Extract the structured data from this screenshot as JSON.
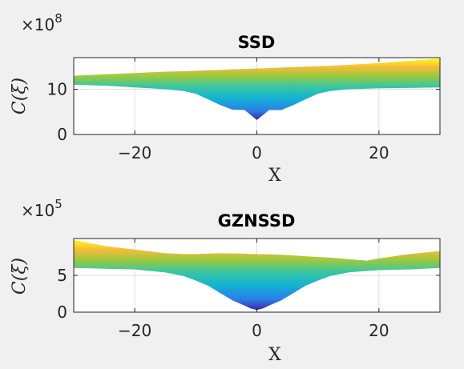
{
  "chart_data": [
    {
      "type": "area",
      "title": "SSD",
      "xlabel": "X",
      "ylabel": "C(ξ)",
      "exponent_base": "×10",
      "exponent_power": "8",
      "xlim": [
        -30,
        30
      ],
      "ylim": [
        0,
        17
      ],
      "xticks": [
        -20,
        0,
        20
      ],
      "yticks": [
        0,
        10
      ],
      "grid": true,
      "colormap": "parula",
      "x": [
        -30,
        -25,
        -20,
        -15,
        -12,
        -10,
        -8,
        -6,
        -4,
        -2,
        -1,
        0,
        1,
        2,
        4,
        6,
        8,
        10,
        12,
        15,
        20,
        25,
        30
      ],
      "series": [
        {
          "values": [
            13,
            13.3,
            13.6,
            13.9,
            14.0,
            14.1,
            14.2,
            14.3,
            14.4,
            14.5,
            14.55,
            14.6,
            14.6,
            14.7,
            14.8,
            14.9,
            15.0,
            15.1,
            15.2,
            15.4,
            15.8,
            16.3,
            16.8
          ]
        },
        {
          "values": [
            11,
            10.8,
            10.4,
            10.0,
            9.6,
            9.0,
            7.8,
            6.5,
            5.5,
            5.4,
            4.3,
            3.2,
            4.3,
            5.4,
            5.4,
            6.5,
            7.8,
            9.0,
            9.6,
            10.0,
            10.2,
            10.3,
            10.4
          ]
        }
      ]
    },
    {
      "type": "area",
      "title": "GZNSSD",
      "xlabel": "X",
      "ylabel": "C(ξ)",
      "exponent_base": "×10",
      "exponent_power": "5",
      "xlim": [
        -30,
        30
      ],
      "ylim": [
        0,
        10
      ],
      "xticks": [
        -20,
        0,
        20
      ],
      "yticks": [
        0,
        5
      ],
      "grid": true,
      "colormap": "parula",
      "x": [
        -30,
        -25,
        -20,
        -15,
        -12,
        -10,
        -8,
        -6,
        -4,
        -2,
        -1,
        0,
        1,
        2,
        4,
        6,
        8,
        10,
        12,
        15,
        18,
        20,
        25,
        30
      ],
      "series": [
        {
          "values": [
            9.8,
            9.0,
            8.5,
            8.0,
            7.9,
            7.9,
            7.95,
            8.0,
            7.98,
            7.95,
            7.9,
            7.9,
            7.88,
            7.85,
            7.8,
            7.7,
            7.6,
            7.5,
            7.4,
            7.2,
            7.0,
            7.3,
            7.9,
            8.3
          ]
        },
        {
          "values": [
            6.0,
            5.9,
            5.8,
            5.4,
            4.9,
            4.3,
            3.6,
            2.6,
            1.6,
            0.9,
            0.5,
            0.3,
            0.5,
            0.9,
            1.6,
            2.6,
            3.6,
            4.3,
            4.9,
            5.4,
            5.6,
            5.7,
            5.8,
            6.0
          ]
        }
      ]
    }
  ]
}
